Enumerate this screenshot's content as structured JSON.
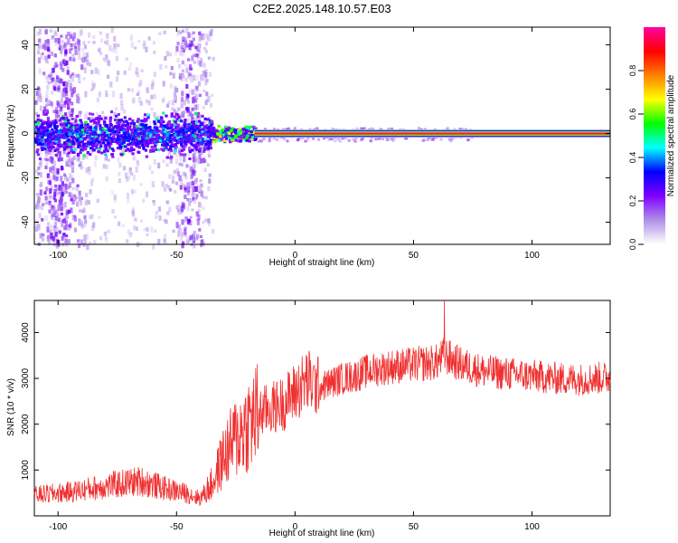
{
  "title": "C2E2.2025.148.10.57.E03",
  "chart_data": [
    {
      "type": "heatmap",
      "xlabel": "Height of straight line (km)",
      "ylabel": "Frequency (Hz)",
      "xlim": [
        -110,
        133
      ],
      "ylim": [
        -50,
        48
      ],
      "xticks": [
        -100,
        -50,
        0,
        50,
        100
      ],
      "yticks": [
        -40,
        -20,
        0,
        20,
        40
      ],
      "colorbar": {
        "label": "Normalized spectral amplitude",
        "range": [
          0.0,
          1.0
        ],
        "ticks": [
          "0.0",
          "0.2",
          "0.4",
          "0.6",
          "0.8"
        ],
        "tick_values": [
          0.0,
          0.2,
          0.4,
          0.6,
          0.8
        ],
        "colors": [
          "#ffffff",
          "#b090e8",
          "#8000ff",
          "#0000ff",
          "#00ffff",
          "#00ff00",
          "#ffff00",
          "#ff8000",
          "#ff0000",
          "#ff00a0"
        ]
      },
      "features": {
        "line_start_km": -17,
        "line_frequency_hz": 0,
        "noise_region_km": [
          -110,
          -35
        ],
        "transition_region_km": [
          -35,
          -17
        ]
      }
    },
    {
      "type": "line",
      "xlabel": "Height of straight line (km)",
      "ylabel": "SNR (10 * v/v)",
      "xlim": [
        -110,
        133
      ],
      "ylim": [
        0,
        4700
      ],
      "xticks": [
        -100,
        -50,
        0,
        50,
        100
      ],
      "yticks": [
        1000,
        2000,
        3000,
        4000
      ],
      "color": "#f03030",
      "profile": [
        [
          -110,
          450
        ],
        [
          -95,
          520
        ],
        [
          -80,
          650
        ],
        [
          -65,
          760
        ],
        [
          -55,
          600
        ],
        [
          -45,
          480
        ],
        [
          -40,
          380
        ],
        [
          -35,
          700
        ],
        [
          -30,
          1300
        ],
        [
          -25,
          1700
        ],
        [
          -20,
          2000
        ],
        [
          -15,
          2250
        ],
        [
          -10,
          2350
        ],
        [
          -5,
          2450
        ],
        [
          0,
          2700
        ],
        [
          5,
          2950
        ],
        [
          10,
          2800
        ],
        [
          15,
          2900
        ],
        [
          20,
          3000
        ],
        [
          25,
          3050
        ],
        [
          30,
          3150
        ],
        [
          40,
          3250
        ],
        [
          50,
          3300
        ],
        [
          60,
          3350
        ],
        [
          63,
          3500
        ],
        [
          70,
          3300
        ],
        [
          80,
          3150
        ],
        [
          90,
          3100
        ],
        [
          100,
          3050
        ],
        [
          110,
          3000
        ],
        [
          120,
          2980
        ],
        [
          133,
          3020
        ]
      ],
      "peak": [
        63,
        4700
      ]
    }
  ]
}
